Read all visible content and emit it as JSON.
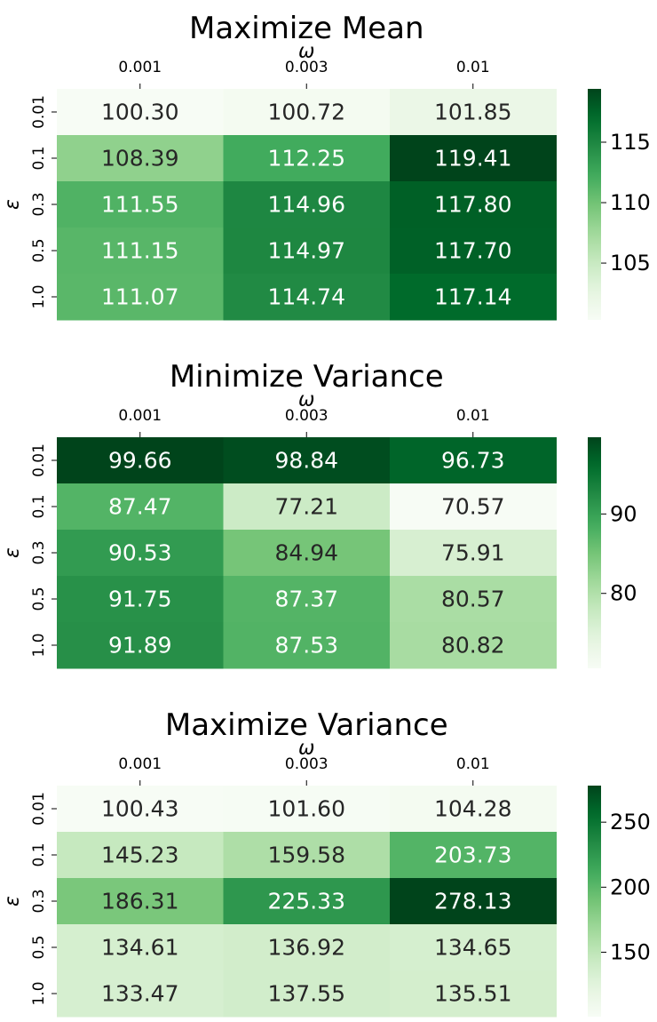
{
  "chart_data": [
    {
      "type": "heatmap",
      "title": "Maximize Mean",
      "xlabel": "ω",
      "ylabel": "ε",
      "x": [
        "0.001",
        "0.003",
        "0.01"
      ],
      "y": [
        "0.01",
        "0.1",
        "0.3",
        "0.5",
        "1.0"
      ],
      "values": [
        [
          100.3,
          100.72,
          101.85
        ],
        [
          108.39,
          112.25,
          119.41
        ],
        [
          111.55,
          114.96,
          117.8
        ],
        [
          111.15,
          114.97,
          117.7
        ],
        [
          111.07,
          114.74,
          117.14
        ]
      ],
      "value_labels": [
        [
          "100.30",
          "100.72",
          "101.85"
        ],
        [
          "108.39",
          "112.25",
          "119.41"
        ],
        [
          "111.55",
          "114.96",
          "117.80"
        ],
        [
          "111.15",
          "114.97",
          "117.70"
        ],
        [
          "111.07",
          "114.74",
          "117.14"
        ]
      ],
      "colorbar": {
        "range": [
          100.3,
          119.41
        ],
        "ticks": [
          "105",
          "110",
          "115"
        ]
      },
      "colormap": "Greens"
    },
    {
      "type": "heatmap",
      "title": "Minimize Variance",
      "xlabel": "ω",
      "ylabel": "ε",
      "x": [
        "0.001",
        "0.003",
        "0.01"
      ],
      "y": [
        "0.01",
        "0.1",
        "0.3",
        "0.5",
        "1.0"
      ],
      "values": [
        [
          99.66,
          98.84,
          96.73
        ],
        [
          87.47,
          77.21,
          70.57
        ],
        [
          90.53,
          84.94,
          75.91
        ],
        [
          91.75,
          87.37,
          80.57
        ],
        [
          91.89,
          87.53,
          80.82
        ]
      ],
      "value_labels": [
        [
          "99.66",
          "98.84",
          "96.73"
        ],
        [
          "87.47",
          "77.21",
          "70.57"
        ],
        [
          "90.53",
          "84.94",
          "75.91"
        ],
        [
          "91.75",
          "87.37",
          "80.57"
        ],
        [
          "91.89",
          "87.53",
          "80.82"
        ]
      ],
      "colorbar": {
        "range": [
          70.57,
          99.66
        ],
        "ticks": [
          "80",
          "90"
        ]
      },
      "colormap": "Greens"
    },
    {
      "type": "heatmap",
      "title": "Maximize Variance",
      "xlabel": "ω",
      "ylabel": "ε",
      "x": [
        "0.001",
        "0.003",
        "0.01"
      ],
      "y": [
        "0.01",
        "0.1",
        "0.3",
        "0.5",
        "1.0"
      ],
      "values": [
        [
          100.43,
          101.6,
          104.28
        ],
        [
          145.23,
          159.58,
          203.73
        ],
        [
          186.31,
          225.33,
          278.13
        ],
        [
          134.61,
          136.92,
          134.65
        ],
        [
          133.47,
          137.55,
          135.51
        ]
      ],
      "value_labels": [
        [
          "100.43",
          "101.60",
          "104.28"
        ],
        [
          "145.23",
          "159.58",
          "203.73"
        ],
        [
          "186.31",
          "225.33",
          "278.13"
        ],
        [
          "134.61",
          "136.92",
          "134.65"
        ],
        [
          "133.47",
          "137.55",
          "135.51"
        ]
      ],
      "colorbar": {
        "range": [
          100.43,
          278.13
        ],
        "ticks": [
          "150",
          "200",
          "250"
        ]
      },
      "colormap": "Greens"
    }
  ]
}
